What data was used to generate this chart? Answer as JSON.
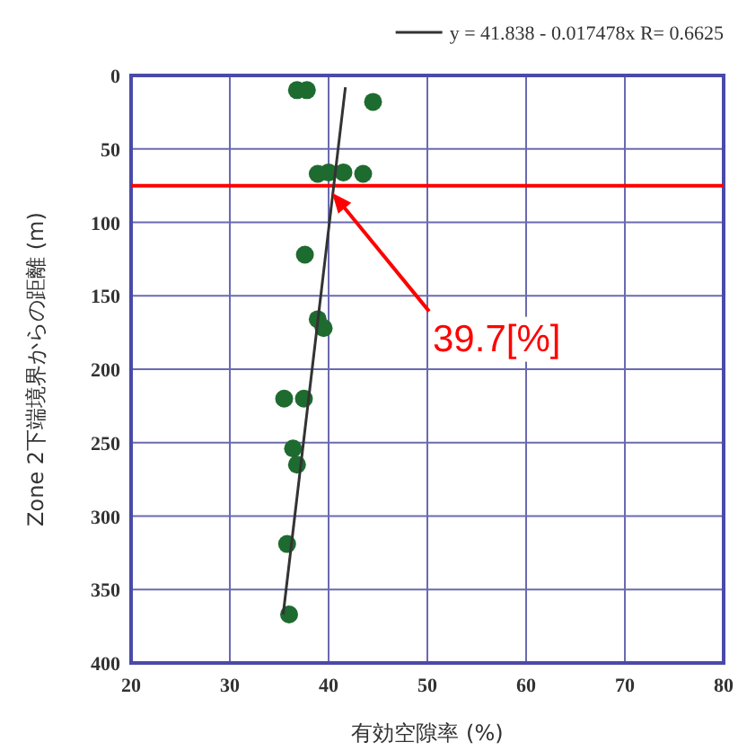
{
  "chart_data": {
    "type": "scatter",
    "xlabel": "有効空隙率 (%)",
    "ylabel": "Zone 2下端境界からの距離 (m)",
    "xlim": [
      20,
      80
    ],
    "ylim": [
      400,
      0
    ],
    "xticks": [
      20,
      30,
      40,
      50,
      60,
      70,
      80
    ],
    "yticks": [
      0,
      50,
      100,
      150,
      200,
      250,
      300,
      350,
      400
    ],
    "grid": true,
    "legend": "top right",
    "marker": "circle",
    "series": [
      {
        "type": "scatter",
        "color": "#1e6b30",
        "x": [
          36.8,
          37.8,
          44.5,
          38.9,
          40.0,
          41.5,
          43.5,
          37.6,
          38.9,
          39.5,
          35.5,
          37.5,
          36.4,
          36.8,
          35.8,
          36.0
        ],
        "values": [
          10,
          10,
          18,
          67,
          66,
          66,
          67,
          122,
          166,
          172,
          220,
          220,
          254,
          265,
          319,
          367
        ]
      },
      {
        "type": "line",
        "name": "y = 41.838 - 0.017478x   R= 0.6625",
        "color": "#333333",
        "marker": "none",
        "x": [
          41.7,
          35.4
        ],
        "values": [
          8,
          367
        ]
      }
    ],
    "ref_lines": [
      {
        "axis": "y",
        "value": 75,
        "color": "#ff0000"
      }
    ],
    "annotations": [
      "39.7[%]"
    ]
  }
}
